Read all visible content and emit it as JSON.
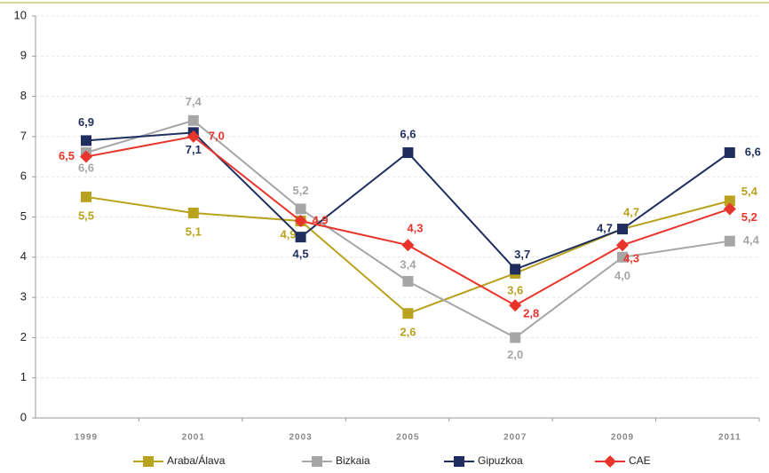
{
  "chart_data": {
    "type": "line",
    "categories": [
      "1999",
      "2001",
      "2003",
      "2005",
      "2007",
      "2009",
      "2011"
    ],
    "ylim": [
      0,
      10
    ],
    "yticks": [
      0,
      1,
      2,
      3,
      4,
      5,
      6,
      7,
      8,
      9,
      10
    ],
    "grid": true,
    "legend": "bottom",
    "series": [
      {
        "name": "Araba/Álava",
        "color": "#b8a21e",
        "marker": "square",
        "values": [
          5.5,
          5.1,
          4.9,
          2.6,
          3.6,
          4.7,
          5.4
        ],
        "value_labels": [
          "5,5",
          "5,1",
          "4,9",
          "2,6",
          "3,6",
          "4,7",
          "5,4"
        ]
      },
      {
        "name": "Bizkaia",
        "color": "#a6a6a6",
        "marker": "square",
        "values": [
          6.6,
          7.4,
          5.2,
          3.4,
          2.0,
          4.0,
          4.4
        ],
        "value_labels": [
          "6,6",
          "7,4",
          "5,2",
          "3,4",
          "2,0",
          "4,0",
          "4,4"
        ]
      },
      {
        "name": "Gipuzkoa",
        "color": "#1f2e5e",
        "marker": "square",
        "values": [
          6.9,
          7.1,
          4.5,
          6.6,
          3.7,
          4.7,
          6.6
        ],
        "value_labels": [
          "6,9",
          "7,1",
          "4,5",
          "6,6",
          "3,7",
          "4,7",
          "6,6"
        ]
      },
      {
        "name": "CAE",
        "color": "#e8352b",
        "marker": "diamond",
        "values": [
          6.5,
          7.0,
          4.9,
          4.3,
          2.8,
          4.3,
          5.2
        ],
        "value_labels": [
          "6,5",
          "7,0",
          "4,9",
          "4,3",
          "2,8",
          "4,3",
          "5,2"
        ]
      }
    ]
  }
}
